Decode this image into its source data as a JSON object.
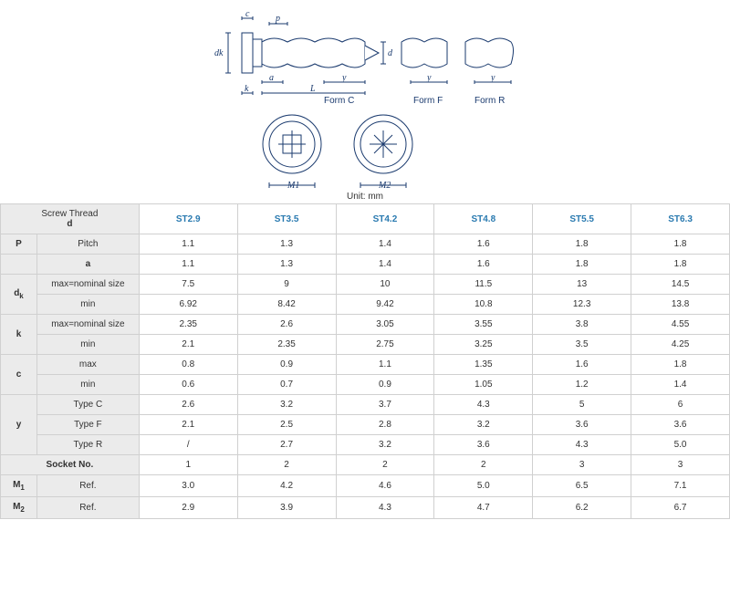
{
  "unit": "Unit: mm",
  "diagram": {
    "labels": {
      "dk": "dk",
      "p": "p",
      "c": "c",
      "d": "d",
      "a": "a",
      "y": "y",
      "k": "k",
      "L": "L",
      "formC": "Form C",
      "formF": "Form F",
      "formR": "Form R",
      "M1": "M1",
      "M2": "M2"
    }
  },
  "columns": [
    "ST2.9",
    "ST3.5",
    "ST4.2",
    "ST4.8",
    "ST5.5",
    "ST6.3"
  ],
  "header": {
    "c0": "Screw Thread",
    "c0b": "d"
  },
  "rows": [
    {
      "lbl": "P",
      "sub": "Pitch",
      "v": [
        "1.1",
        "1.3",
        "1.4",
        "1.6",
        "1.8",
        "1.8"
      ]
    },
    {
      "lbl": "",
      "sub": "a",
      "v": [
        "1.1",
        "1.3",
        "1.4",
        "1.6",
        "1.8",
        "1.8"
      ],
      "boldSub": true
    },
    {
      "lbl": "d",
      "sublbl": "k",
      "sub": "max=nominal size",
      "v": [
        "7.5",
        "9",
        "10",
        "11.5",
        "13",
        "14.5"
      ]
    },
    {
      "lbl": "",
      "sub": "min",
      "v": [
        "6.92",
        "8.42",
        "9.42",
        "10.8",
        "12.3",
        "13.8"
      ]
    },
    {
      "lbl": "k",
      "sub": "max=nominal size",
      "v": [
        "2.35",
        "2.6",
        "3.05",
        "3.55",
        "3.8",
        "4.55"
      ]
    },
    {
      "lbl": "",
      "sub": "min",
      "v": [
        "2.1",
        "2.35",
        "2.75",
        "3.25",
        "3.5",
        "4.25"
      ]
    },
    {
      "lbl": "c",
      "sub": "max",
      "v": [
        "0.8",
        "0.9",
        "1.1",
        "1.35",
        "1.6",
        "1.8"
      ]
    },
    {
      "lbl": "",
      "sub": "min",
      "v": [
        "0.6",
        "0.7",
        "0.9",
        "1.05",
        "1.2",
        "1.4"
      ]
    },
    {
      "lbl": "y",
      "sub": "Type C",
      "v": [
        "2.6",
        "3.2",
        "3.7",
        "4.3",
        "5",
        "6"
      ]
    },
    {
      "lbl": "",
      "sub": "Type F",
      "v": [
        "2.1",
        "2.5",
        "2.8",
        "3.2",
        "3.6",
        "3.6"
      ]
    },
    {
      "lbl": "",
      "sub": "Type R",
      "v": [
        "/",
        "2.7",
        "3.2",
        "3.6",
        "4.3",
        "5.0"
      ]
    },
    {
      "lbl": "Socket No.",
      "sub": "",
      "v": [
        "1",
        "2",
        "2",
        "2",
        "3",
        "3"
      ],
      "span": true
    },
    {
      "lbl": "M",
      "sublbl": "1",
      "sub": "Ref.",
      "v": [
        "3.0",
        "4.2",
        "4.6",
        "5.0",
        "6.5",
        "7.1"
      ]
    },
    {
      "lbl": "M",
      "sublbl": "2",
      "sub": "Ref.",
      "v": [
        "2.9",
        "3.9",
        "4.3",
        "4.7",
        "6.2",
        "6.7"
      ]
    }
  ]
}
